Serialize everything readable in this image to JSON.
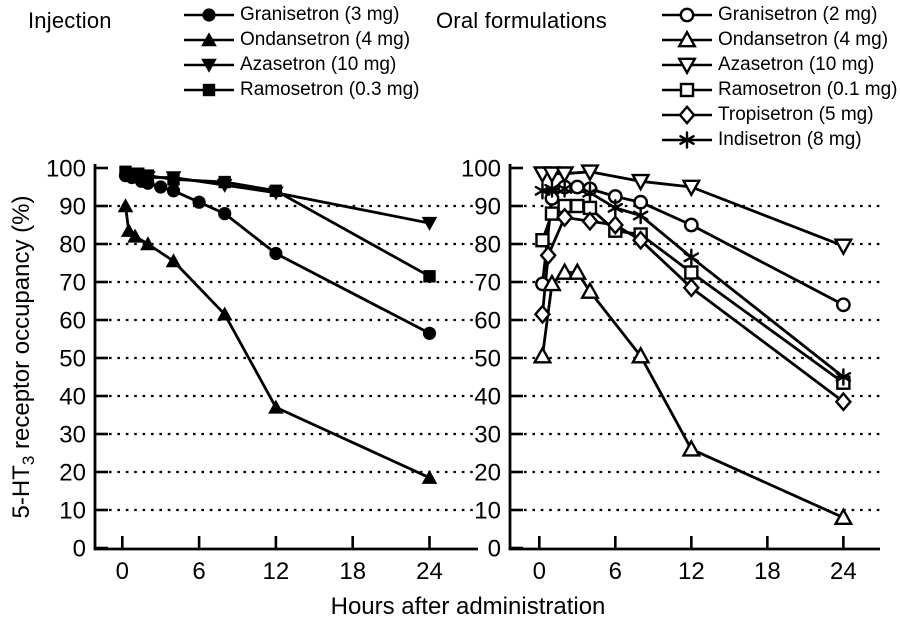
{
  "figure": {
    "xlabel": "Hours after administration",
    "ylabel_prefix": "5-HT",
    "ylabel_subscript": "3",
    "ylabel_suffix": " receptor occupancy (%)",
    "ink_color": "#000000",
    "background_color": "#ffffff"
  },
  "chart_data": [
    {
      "type": "line",
      "title": "Injection",
      "xlabel": "Hours after administration",
      "ylabel": "5-HT3 receptor occupancy (%)",
      "xlim": [
        0,
        27
      ],
      "ylim": [
        0,
        100
      ],
      "xticks": [
        0,
        6,
        12,
        18,
        24
      ],
      "yticks": [
        0,
        10,
        20,
        30,
        40,
        50,
        60,
        70,
        80,
        90,
        100
      ],
      "grid": "horizontal dotted lines at each 10%",
      "legend_position": "above plot, left column",
      "series": [
        {
          "name": "Granisetron (3 mg)",
          "marker": "circle-filled",
          "x": [
            0.25,
            0.75,
            1.5,
            2,
            3,
            4,
            6,
            8,
            12,
            24
          ],
          "y": [
            98,
            97.5,
            96.5,
            96,
            95,
            94,
            91,
            88,
            77.5,
            56.5
          ]
        },
        {
          "name": "Ondansetron (4 mg)",
          "marker": "triangle-up-filled",
          "x": [
            0.25,
            0.5,
            1,
            2,
            4,
            8,
            12,
            24
          ],
          "y": [
            90,
            83.5,
            82,
            80,
            75.5,
            61.5,
            37,
            18.5
          ]
        },
        {
          "name": "Azasetron (10 mg)",
          "marker": "triangle-down-filled",
          "x": [
            0.5,
            1,
            2,
            4,
            8,
            12,
            24
          ],
          "y": [
            98.5,
            98,
            97.5,
            97.5,
            95.5,
            93.5,
            85.5
          ]
        },
        {
          "name": "Ramosetron (0.3 mg)",
          "marker": "square-filled",
          "x": [
            0.25,
            0.6,
            1.25,
            2,
            4,
            8,
            12,
            24
          ],
          "y": [
            99,
            98.5,
            98.5,
            98,
            97,
            96.3,
            94,
            71.5
          ]
        }
      ]
    },
    {
      "type": "line",
      "title": "Oral formulations",
      "xlabel": "Hours after administration",
      "ylabel": "5-HT3 receptor occupancy (%)",
      "xlim": [
        0,
        27
      ],
      "ylim": [
        0,
        100
      ],
      "xticks": [
        0,
        6,
        12,
        18,
        24
      ],
      "yticks": [
        0,
        10,
        20,
        30,
        40,
        50,
        60,
        70,
        80,
        90,
        100
      ],
      "grid": "horizontal dotted lines at each 10%",
      "legend_position": "above plot, right column",
      "series": [
        {
          "name": "Granisetron (2 mg)",
          "marker": "circle-open",
          "x": [
            0.25,
            1,
            2,
            3,
            4,
            6,
            8,
            12,
            24
          ],
          "y": [
            69.5,
            92,
            95,
            95,
            94.5,
            92.5,
            91,
            85,
            64
          ]
        },
        {
          "name": "Ondansetron (4 mg)",
          "marker": "triangle-up-open",
          "x": [
            0.25,
            1,
            2,
            3,
            4,
            8,
            12,
            24
          ],
          "y": [
            50.5,
            69.5,
            72.5,
            72.5,
            67.5,
            50.5,
            26,
            8
          ]
        },
        {
          "name": "Azasetron (10 mg)",
          "marker": "triangle-down-open",
          "x": [
            0.25,
            1,
            2,
            4,
            8,
            12,
            24
          ],
          "y": [
            98.5,
            98.5,
            98.5,
            99,
            96.5,
            95,
            79.5
          ]
        },
        {
          "name": "Ramosetron (0.1 mg)",
          "marker": "square-open",
          "x": [
            0.25,
            1,
            2,
            3,
            4,
            6,
            8,
            12,
            24
          ],
          "y": [
            81,
            88,
            90,
            90,
            89.5,
            83.5,
            82.5,
            72.5,
            43.5
          ]
        },
        {
          "name": "Tropisetron (5 mg)",
          "marker": "diamond-open",
          "x": [
            0.25,
            0.7,
            2,
            4,
            6,
            8,
            12,
            24
          ],
          "y": [
            61.5,
            77,
            87,
            86,
            85,
            81,
            68.5,
            38.5
          ]
        },
        {
          "name": "Indisetron (8 mg)",
          "marker": "asterisk",
          "x": [
            0.25,
            1,
            2,
            4,
            6,
            8,
            12,
            24
          ],
          "y": [
            94,
            94.5,
            94.5,
            93.5,
            89.5,
            87.5,
            76.5,
            45
          ]
        }
      ]
    }
  ]
}
